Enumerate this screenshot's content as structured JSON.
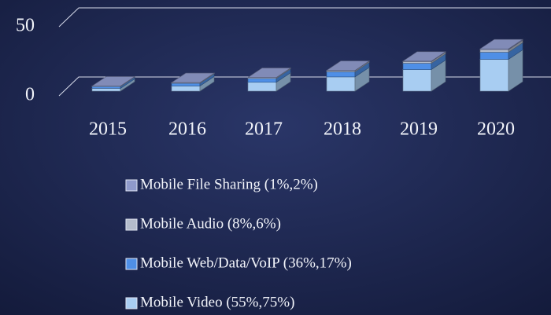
{
  "chart_data": {
    "type": "bar3d_stacked",
    "categories": [
      "2015",
      "2016",
      "2017",
      "2018",
      "2019",
      "2020"
    ],
    "series": [
      {
        "name": "Mobile Video (55%,75%)",
        "color": "#a8cdf2",
        "values": [
          2.0,
          3.7,
          6.4,
          10.3,
          15.6,
          23.0
        ]
      },
      {
        "name": "Mobile Web/Data/VoIP (36%,17%)",
        "color": "#4f8fe6",
        "values": [
          1.3,
          2.0,
          2.8,
          3.7,
          4.6,
          5.2
        ]
      },
      {
        "name": "Mobile Audio (8%,6%)",
        "color": "#b4bccb",
        "values": [
          0.3,
          0.4,
          0.6,
          0.8,
          1.2,
          1.8
        ]
      },
      {
        "name": "Mobile File Sharing (1%,2%)",
        "color": "#8f9acb",
        "values": [
          0.1,
          0.1,
          0.1,
          0.2,
          0.3,
          0.6
        ]
      }
    ],
    "ylim": [
      0,
      50
    ],
    "yticks": [
      0,
      50
    ],
    "grid": true,
    "legend": "bottom"
  }
}
